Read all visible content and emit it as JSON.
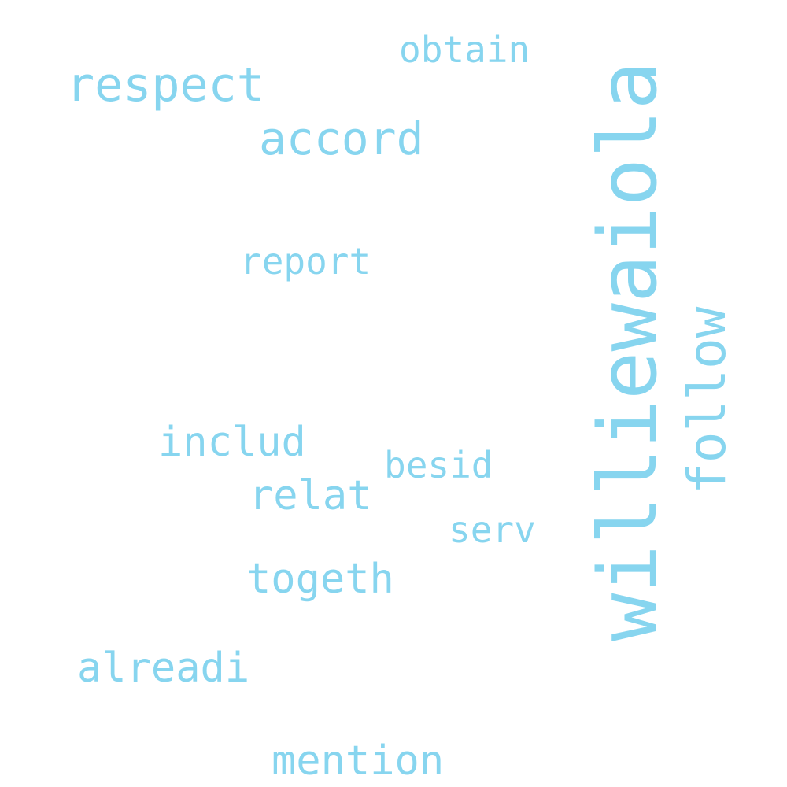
{
  "cloud": {
    "text_color": "#87d5ef",
    "background_color": "#ffffff",
    "words": {
      "obtain": "obtain",
      "respect": "respect",
      "accord": "accord",
      "report": "report",
      "includ": "includ",
      "besid": "besid",
      "relat": "relat",
      "serv": "serv",
      "togeth": "togeth",
      "alreadi": "alreadi",
      "mention": "mention",
      "williewaiola": "williewaiola",
      "follow": "follow"
    }
  }
}
